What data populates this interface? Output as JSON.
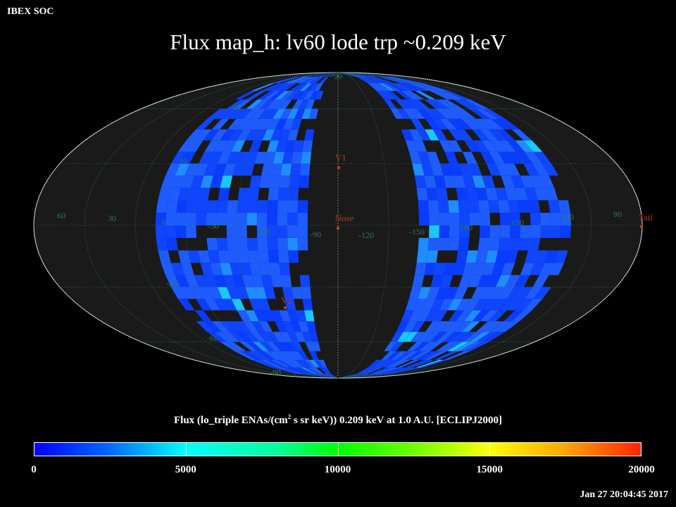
{
  "header": {
    "org": "IBEX SOC",
    "title": "Flux   map_h: lv60 lode trp ~0.209 keV"
  },
  "map": {
    "lon_labels": [
      "60",
      "30",
      "0",
      "-30",
      "-60",
      "-90",
      "-120",
      "-150",
      "180",
      "150",
      "120",
      "90"
    ],
    "lat_labels": [
      "90",
      "60",
      "30",
      "-30",
      "-60",
      "-90"
    ],
    "markers": [
      {
        "name": "V1",
        "lon": -105,
        "lat": 35
      },
      {
        "name": "Nose",
        "lon": -105,
        "lat": 5
      },
      {
        "name": "Tail",
        "lon": 75,
        "lat": -5
      },
      {
        "name": "V2",
        "lon": -73,
        "lat": -34
      }
    ],
    "colors": {
      "background": "#000000",
      "disk": "#1a1a1a",
      "grid": "#2a7a55",
      "marker": "#b23a2a",
      "pixel_base": "#0a3cff"
    }
  },
  "colorbar": {
    "title_pre": "Flux (lo_triple ENAs/(cm",
    "title_sup": "2",
    "title_post": " s sr keV))  0.209 keV at 1.0 A.U. [ECLIPJ2000]",
    "min": 0,
    "max": 20000,
    "ticks": [
      "0",
      "5000",
      "10000",
      "15000",
      "20000"
    ]
  },
  "footer": {
    "timestamp": "Jan 27 20:04:45 2017"
  }
}
